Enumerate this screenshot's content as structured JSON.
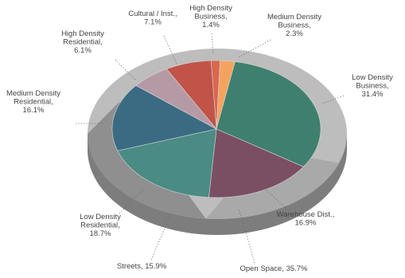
{
  "chart_data": {
    "type": "pie",
    "style": "3d-donut-ring",
    "title": "",
    "inner_pie_start_angle_deg": -93,
    "inner_slices": [
      {
        "label_lines": [
          "High Density",
          "Business,",
          "1.4%"
        ],
        "value": 1.4,
        "color": "#d9674f"
      },
      {
        "label_lines": [
          "Medium Density",
          "Business,",
          "2.3%"
        ],
        "value": 2.3,
        "color": "#f4a35f"
      },
      {
        "label_lines": [
          "Low Density",
          "Business,",
          "31.4%"
        ],
        "value": 31.4,
        "color": "#3f7f6e"
      },
      {
        "label_lines": [
          "Warehouse Dist.,",
          "16.9%"
        ],
        "value": 16.9,
        "color": "#7a4f63"
      },
      {
        "label_lines": [
          "Low Density",
          "Residential,",
          "18.7%"
        ],
        "value": 18.7,
        "color": "#4a8b83"
      },
      {
        "label_lines": [
          "Medium Density",
          "Residential,",
          "16.1%"
        ],
        "value": 16.1,
        "color": "#3a6b83"
      },
      {
        "label_lines": [
          "High Density",
          "Residential,",
          "6.1%"
        ],
        "value": 6.1,
        "color": "#b59aa6"
      },
      {
        "label_lines": [
          "Cultural / Inst.,",
          "7.1%"
        ],
        "value": 7.1,
        "color": "#c15348"
      }
    ],
    "outer_ring": [
      {
        "label_lines": [
          "Open Space, 35.7%"
        ],
        "value": 35.7,
        "color": "#a7a7a7"
      },
      {
        "label_lines": [
          "Streets, 15.9%"
        ],
        "value": 15.9,
        "color": "#8c8c8c"
      }
    ],
    "outer_ring_colors": {
      "top": "#bdbdbd",
      "left_band": "#8f8f8f",
      "right_band": "#a9a9a9",
      "side": "#7d7d7d"
    }
  }
}
